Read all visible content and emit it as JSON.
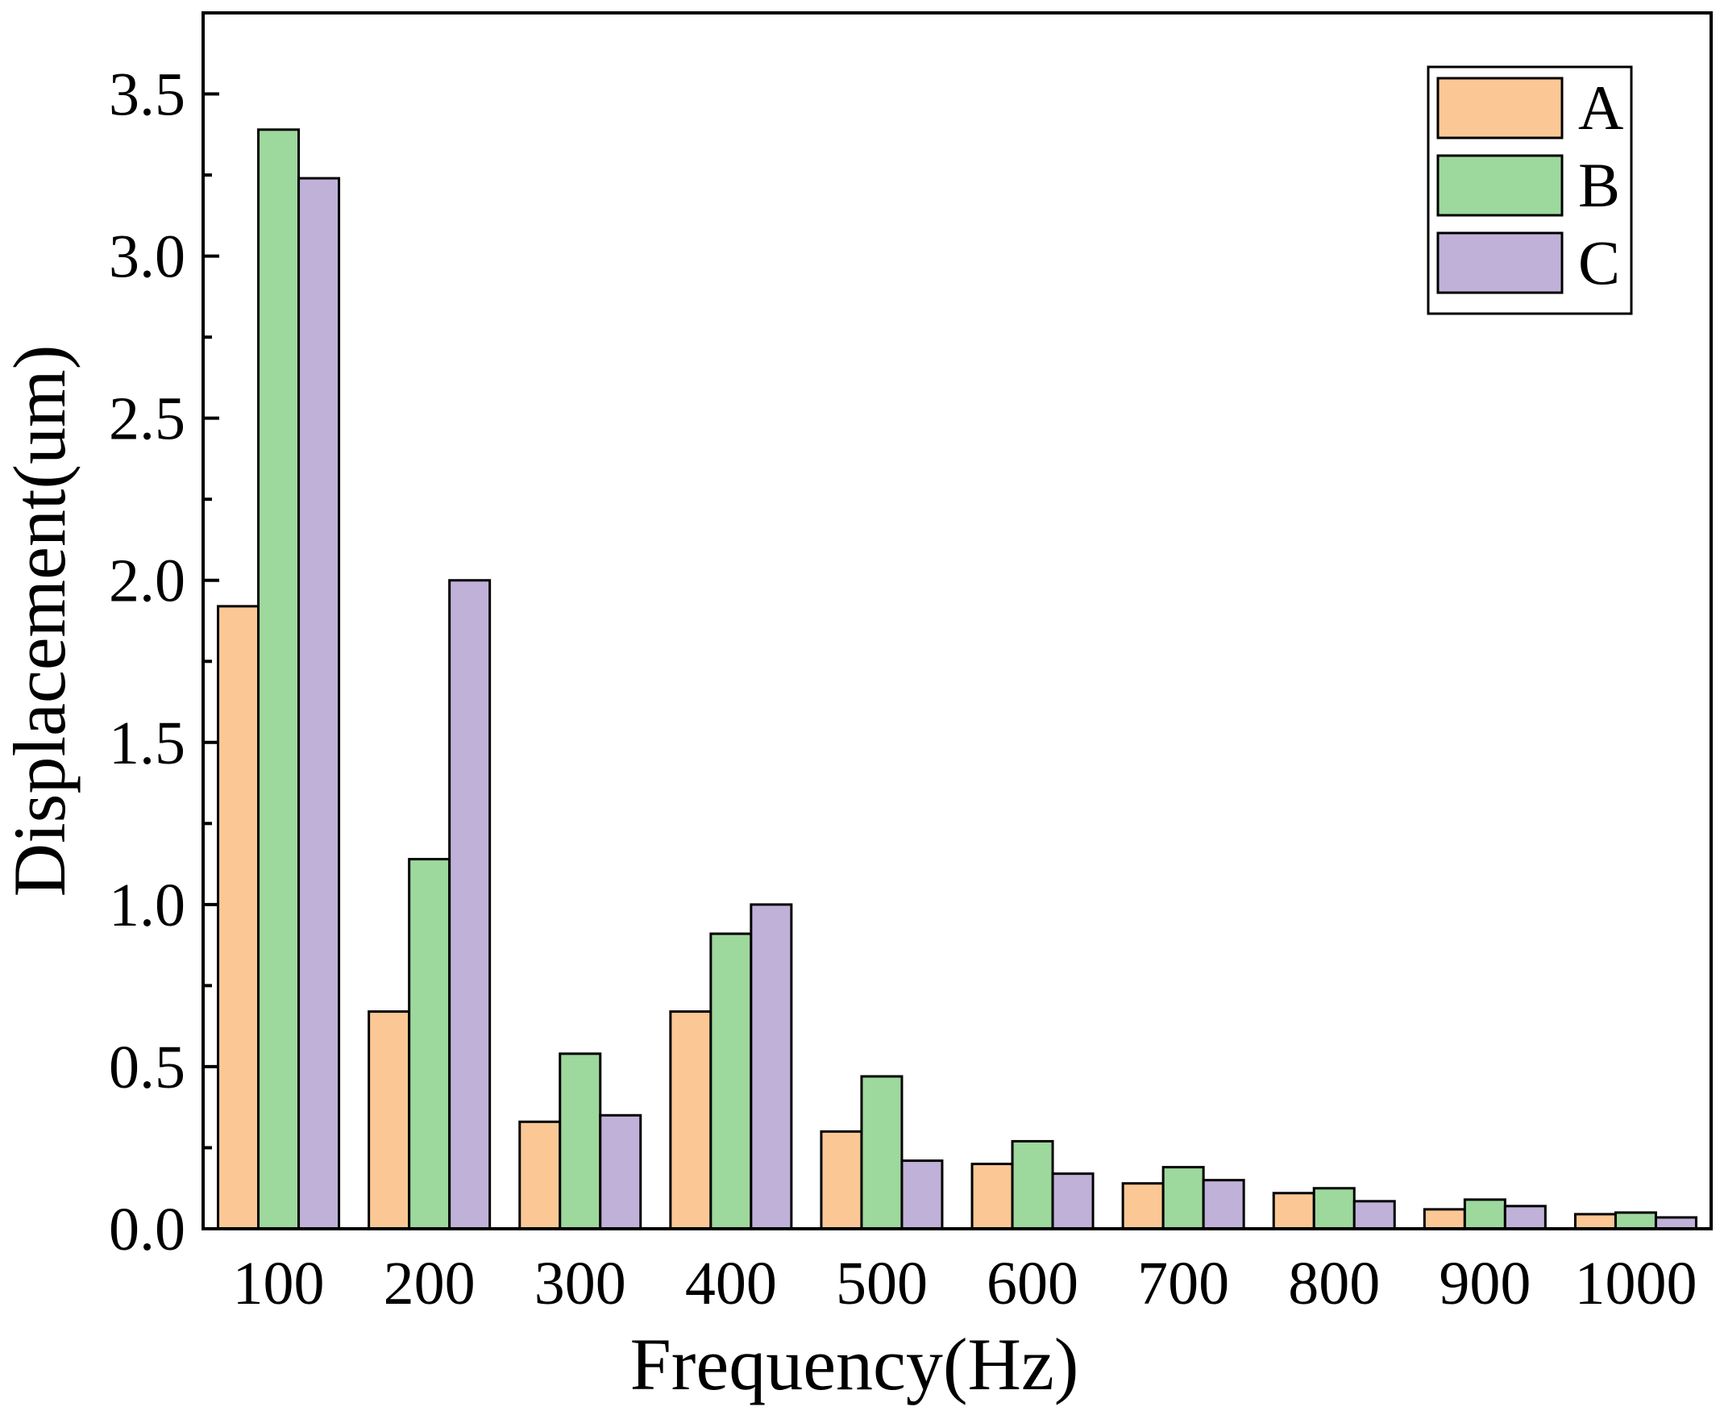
{
  "chart_data": {
    "type": "bar",
    "title": "",
    "xlabel": "Frequency(Hz)",
    "ylabel": "Displacement(um)",
    "categories": [
      "100",
      "200",
      "300",
      "400",
      "500",
      "600",
      "700",
      "800",
      "900",
      "1000"
    ],
    "series": [
      {
        "name": "A",
        "color": "#FBC895",
        "values": [
          1.92,
          0.67,
          0.33,
          0.67,
          0.3,
          0.2,
          0.14,
          0.11,
          0.06,
          0.045
        ]
      },
      {
        "name": "B",
        "color": "#9DD89D",
        "values": [
          3.39,
          1.14,
          0.54,
          0.91,
          0.47,
          0.27,
          0.19,
          0.125,
          0.09,
          0.05
        ]
      },
      {
        "name": "C",
        "color": "#C0B1D9",
        "values": [
          3.24,
          2.0,
          0.35,
          1.0,
          0.21,
          0.17,
          0.15,
          0.085,
          0.07,
          0.035
        ]
      }
    ],
    "ylim": [
      0,
      3.75
    ],
    "yticks": [
      "0.0",
      "0.5",
      "1.0",
      "1.5",
      "2.0",
      "2.5",
      "3.0",
      "3.5"
    ],
    "grid": false,
    "legend_position": "top-right"
  }
}
